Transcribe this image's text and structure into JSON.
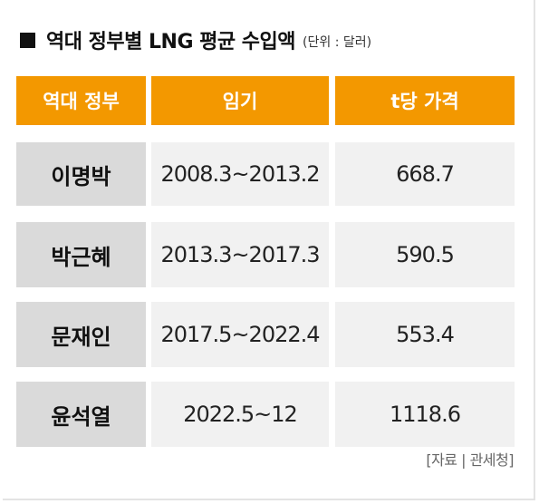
{
  "title": {
    "main": "역대 정부별 LNG 평균 수입액",
    "unit": "(단위 : 달러)"
  },
  "table": {
    "headers": [
      "역대 정부",
      "임기",
      "t당 가격"
    ],
    "rows": [
      {
        "government": "이명박",
        "term": "2008.3~2013.2",
        "price": "668.7"
      },
      {
        "government": "박근혜",
        "term": "2013.3~2017.3",
        "price": "590.5"
      },
      {
        "government": "문재인",
        "term": "2017.5~2022.4",
        "price": "553.4"
      },
      {
        "government": "윤석열",
        "term": "2022.5~12",
        "price": "1118.6"
      }
    ]
  },
  "source": "[자료 | 관세청]",
  "colors": {
    "header_bg": "#f39800",
    "name_bg": "#dadada",
    "value_bg": "#f1f1f1"
  }
}
